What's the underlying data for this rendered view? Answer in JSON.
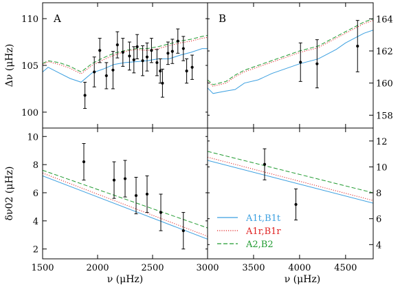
{
  "chart_data": {
    "type": "line",
    "legend": {
      "placement": "lower panel B, lower-left",
      "entries": [
        {
          "key": "t",
          "label": "A1t,B1t",
          "color": "#3a9fe0",
          "style": "solid"
        },
        {
          "key": "r",
          "label": "A1r,B1r",
          "color": "#e02020",
          "style": "dotted"
        },
        {
          "key": "g",
          "label": "A2,B2",
          "color": "#1f9a2f",
          "style": "dashed"
        }
      ]
    },
    "xlabel_left": "ν (μHz)",
    "xlabel_right": "ν (μHz)",
    "panels": [
      {
        "id": "A_top",
        "label": "A",
        "ylabel": "Δν (μHz)",
        "yaxis_side": "left",
        "xlim": [
          1500,
          3000
        ],
        "ylim": [
          98.3,
          111.7
        ],
        "xticks": [],
        "xtick_labels": false,
        "yticks": [
          100,
          105,
          110
        ],
        "ylabel_ticks": [
          "100",
          "105",
          "110"
        ],
        "series": [
          {
            "key": "t",
            "x": [
              1500,
              1550,
              1650,
              1750,
              1850,
              1950,
              2050,
              2150,
              2250,
              2350,
              2450,
              2550,
              2650,
              2750,
              2850,
              2950,
              3000
            ],
            "y": [
              104.3,
              104.8,
              104.2,
              103.6,
              103.2,
              104.2,
              104.6,
              105.1,
              105.3,
              105.4,
              105.5,
              105.7,
              105.7,
              106.1,
              106.4,
              106.8,
              106.8
            ]
          },
          {
            "key": "r",
            "x": [
              1500,
              1550,
              1650,
              1750,
              1850,
              1950,
              2050,
              2150,
              2250,
              2350,
              2450,
              2550,
              2650,
              2750,
              2850,
              2950,
              3000
            ],
            "y": [
              105.1,
              105.4,
              105.1,
              104.7,
              104.1,
              105.0,
              105.6,
              106.1,
              106.5,
              106.7,
              106.6,
              106.8,
              107.1,
              107.4,
              107.6,
              107.9,
              108.0
            ]
          },
          {
            "key": "g",
            "x": [
              1500,
              1550,
              1650,
              1750,
              1850,
              1950,
              2050,
              2150,
              2250,
              2350,
              2450,
              2550,
              2650,
              2750,
              2850,
              2950,
              3000
            ],
            "y": [
              105.2,
              105.5,
              105.3,
              104.9,
              104.3,
              105.2,
              105.8,
              106.3,
              106.6,
              106.8,
              106.8,
              107.0,
              107.3,
              107.6,
              107.8,
              108.1,
              108.2
            ]
          }
        ],
        "points": [
          {
            "x": 1885,
            "y": 101.8,
            "err": 1.4
          },
          {
            "x": 1970,
            "y": 104.3,
            "err": 1.6
          },
          {
            "x": 2020,
            "y": 106.6,
            "err": 1.3
          },
          {
            "x": 2080,
            "y": 103.9,
            "err": 1.4
          },
          {
            "x": 2140,
            "y": 104.5,
            "err": 2.0
          },
          {
            "x": 2180,
            "y": 107.2,
            "err": 1.4
          },
          {
            "x": 2230,
            "y": 106.4,
            "err": 1.5
          },
          {
            "x": 2290,
            "y": 106.0,
            "err": 1.5
          },
          {
            "x": 2330,
            "y": 105.6,
            "err": 1.4
          },
          {
            "x": 2360,
            "y": 107.0,
            "err": 1.3
          },
          {
            "x": 2410,
            "y": 105.5,
            "err": 1.6
          },
          {
            "x": 2450,
            "y": 105.9,
            "err": 1.5
          },
          {
            "x": 2490,
            "y": 106.6,
            "err": 1.3
          },
          {
            "x": 2540,
            "y": 105.3,
            "err": 1.4
          },
          {
            "x": 2570,
            "y": 104.4,
            "err": 1.3
          },
          {
            "x": 2590,
            "y": 103.1,
            "err": 1.5
          },
          {
            "x": 2640,
            "y": 106.3,
            "err": 1.2
          },
          {
            "x": 2680,
            "y": 106.5,
            "err": 1.3
          },
          {
            "x": 2730,
            "y": 107.6,
            "err": 1.3
          },
          {
            "x": 2780,
            "y": 106.8,
            "err": 1.3
          },
          {
            "x": 2810,
            "y": 104.4,
            "err": 1.3
          },
          {
            "x": 2860,
            "y": 104.8,
            "err": 1.3
          }
        ]
      },
      {
        "id": "B_top",
        "label": "B",
        "ylabel": "",
        "yaxis_side": "right",
        "xlim": [
          3000,
          4800
        ],
        "ylim": [
          157.2,
          165.0
        ],
        "xticks": [],
        "xtick_labels": false,
        "yticks": [
          158,
          160,
          162,
          164
        ],
        "ylabel_ticks": [
          "158",
          "160",
          "162",
          "164"
        ],
        "series": [
          {
            "key": "t",
            "x": [
              3000,
              3060,
              3200,
              3300,
              3400,
              3550,
              3700,
              3850,
              4000,
              4100,
              4200,
              4300,
              4400,
              4500,
              4600,
              4700,
              4800
            ],
            "y": [
              159.7,
              159.35,
              159.5,
              159.6,
              160.0,
              160.2,
              160.6,
              160.9,
              161.2,
              161.35,
              161.5,
              161.8,
              162.1,
              162.5,
              162.8,
              163.1,
              163.3
            ]
          },
          {
            "key": "r",
            "x": [
              3000,
              3060,
              3200,
              3300,
              3400,
              3550,
              3700,
              3850,
              4000,
              4100,
              4200,
              4300,
              4400,
              4500,
              4600,
              4700,
              4800
            ],
            "y": [
              160.1,
              159.8,
              160.0,
              160.4,
              160.7,
              161.0,
              161.3,
              161.6,
              161.9,
              162.05,
              162.2,
              162.5,
              162.8,
              163.1,
              163.4,
              163.7,
              163.9
            ]
          },
          {
            "key": "g",
            "x": [
              3000,
              3060,
              3200,
              3300,
              3400,
              3550,
              3700,
              3850,
              4000,
              4100,
              4200,
              4300,
              4400,
              4500,
              4600,
              4700,
              4800
            ],
            "y": [
              160.2,
              159.9,
              160.1,
              160.5,
              160.8,
              161.1,
              161.4,
              161.7,
              162.0,
              162.15,
              162.3,
              162.6,
              162.9,
              163.2,
              163.5,
              163.8,
              164.0
            ]
          }
        ],
        "points": [
          {
            "x": 4010,
            "y": 161.3,
            "err": 1.2
          },
          {
            "x": 4190,
            "y": 161.2,
            "err": 1.5
          },
          {
            "x": 4630,
            "y": 162.3,
            "err": 1.6
          }
        ]
      },
      {
        "id": "A_bottom",
        "label": "",
        "ylabel": "δν02 (μHz)",
        "yaxis_side": "left",
        "xlim": [
          1500,
          3000
        ],
        "ylim": [
          1.3,
          10.6
        ],
        "xticks": [
          1500,
          2000,
          2500,
          3000
        ],
        "xtick_labels": [
          "1500",
          "2000",
          "2500",
          "3000"
        ],
        "yticks": [
          2,
          4,
          6,
          8,
          10
        ],
        "ylabel_ticks": [
          "2",
          "4",
          "6",
          "8",
          "10"
        ],
        "series": [
          {
            "key": "t",
            "x": [
              1500,
              3000
            ],
            "y": [
              7.2,
              2.7
            ]
          },
          {
            "key": "r",
            "x": [
              1500,
              3000
            ],
            "y": [
              7.4,
              2.9
            ]
          },
          {
            "key": "g",
            "x": [
              1500,
              3000
            ],
            "y": [
              7.6,
              3.5
            ]
          }
        ],
        "points": [
          {
            "x": 1875,
            "y": 8.2,
            "err": 1.3
          },
          {
            "x": 2150,
            "y": 6.9,
            "err": 1.3
          },
          {
            "x": 2250,
            "y": 7.0,
            "err": 1.3
          },
          {
            "x": 2350,
            "y": 5.8,
            "err": 1.3
          },
          {
            "x": 2450,
            "y": 5.9,
            "err": 1.3
          },
          {
            "x": 2575,
            "y": 4.6,
            "err": 1.3
          },
          {
            "x": 2780,
            "y": 3.3,
            "err": 1.3
          }
        ]
      },
      {
        "id": "B_bottom",
        "label": "",
        "ylabel": "",
        "yaxis_side": "right",
        "xlim": [
          3000,
          4800
        ],
        "ylim": [
          2.9,
          13.0
        ],
        "xticks": [
          3000,
          3500,
          4000,
          4500
        ],
        "xtick_labels": [
          "3000",
          "3500",
          "4000",
          "4500"
        ],
        "yticks": [
          4,
          6,
          8,
          10,
          12
        ],
        "ylabel_ticks": [
          "4",
          "6",
          "8",
          "10",
          "12"
        ],
        "series": [
          {
            "key": "t",
            "x": [
              3000,
              4800
            ],
            "y": [
              10.5,
              7.2
            ]
          },
          {
            "key": "r",
            "x": [
              3000,
              4800
            ],
            "y": [
              10.75,
              7.4
            ]
          },
          {
            "key": "g",
            "x": [
              3000,
              4800
            ],
            "y": [
              11.2,
              8.0
            ]
          }
        ],
        "points": [
          {
            "x": 3620,
            "y": 10.2,
            "err": 1.2
          },
          {
            "x": 3960,
            "y": 7.1,
            "err": 1.2
          }
        ]
      }
    ]
  }
}
